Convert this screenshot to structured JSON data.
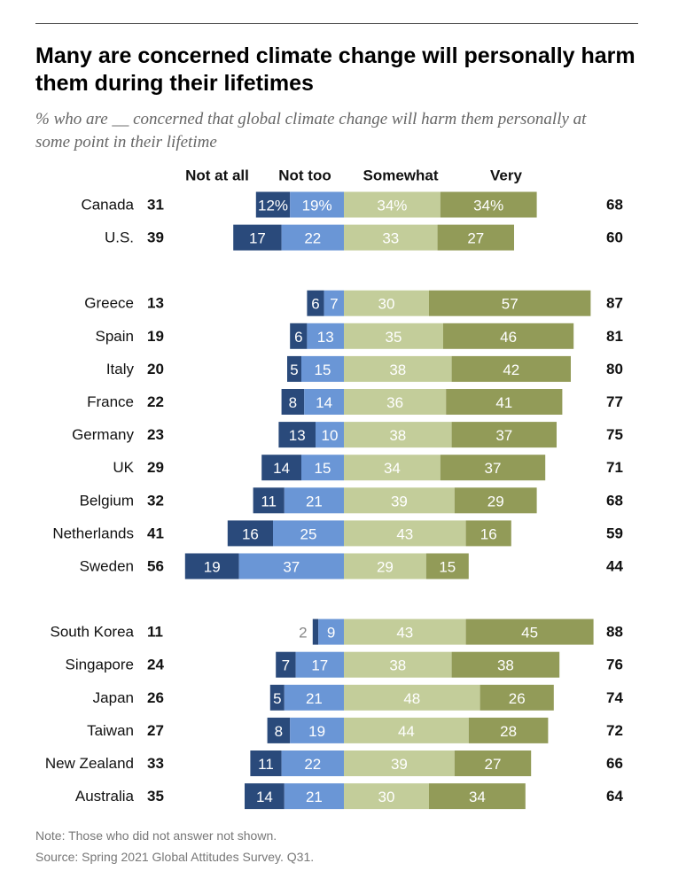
{
  "header": {
    "title": "Many are concerned climate change will personally harm them during their lifetimes",
    "subtitle": "% who are __ concerned that global climate change will harm them personally at some point in their lifetime"
  },
  "footer": {
    "note": "Note: Those who did not answer not shown.",
    "source": "Source: Spring 2021 Global Attitudes Survey. Q31."
  },
  "colors": {
    "not_at_all": "#2a4a7b",
    "not_too": "#6a96d6",
    "somewhat": "#c3cd9a",
    "very": "#929b58"
  },
  "chart_data": {
    "type": "bar",
    "orientation": "horizontal",
    "stacking": "diverging",
    "series": [
      {
        "name": "Not at all",
        "side": "negative"
      },
      {
        "name": "Not too",
        "side": "negative"
      },
      {
        "name": "Somewhat",
        "side": "positive"
      },
      {
        "name": "Very",
        "side": "positive"
      }
    ],
    "groups": [
      [
        {
          "country": "Canada",
          "not_concerned_total": "31",
          "values": [
            12,
            19,
            34,
            34
          ],
          "labels": [
            "12%",
            "19%",
            "34%",
            "34%"
          ],
          "concerned_total": "68"
        },
        {
          "country": "U.S.",
          "not_concerned_total": "39",
          "values": [
            17,
            22,
            33,
            27
          ],
          "labels": [
            "17",
            "22",
            "33",
            "27"
          ],
          "concerned_total": "60"
        }
      ],
      [
        {
          "country": "Greece",
          "not_concerned_total": "13",
          "values": [
            6,
            7,
            30,
            57
          ],
          "labels": [
            "6",
            "7",
            "30",
            "57"
          ],
          "concerned_total": "87"
        },
        {
          "country": "Spain",
          "not_concerned_total": "19",
          "values": [
            6,
            13,
            35,
            46
          ],
          "labels": [
            "6",
            "13",
            "35",
            "46"
          ],
          "concerned_total": "81"
        },
        {
          "country": "Italy",
          "not_concerned_total": "20",
          "values": [
            5,
            15,
            38,
            42
          ],
          "labels": [
            "5",
            "15",
            "38",
            "42"
          ],
          "concerned_total": "80"
        },
        {
          "country": "France",
          "not_concerned_total": "22",
          "values": [
            8,
            14,
            36,
            41
          ],
          "labels": [
            "8",
            "14",
            "36",
            "41"
          ],
          "concerned_total": "77"
        },
        {
          "country": "Germany",
          "not_concerned_total": "23",
          "values": [
            13,
            10,
            38,
            37
          ],
          "labels": [
            "13",
            "10",
            "38",
            "37"
          ],
          "concerned_total": "75"
        },
        {
          "country": "UK",
          "not_concerned_total": "29",
          "values": [
            14,
            15,
            34,
            37
          ],
          "labels": [
            "14",
            "15",
            "34",
            "37"
          ],
          "concerned_total": "71"
        },
        {
          "country": "Belgium",
          "not_concerned_total": "32",
          "values": [
            11,
            21,
            39,
            29
          ],
          "labels": [
            "11",
            "21",
            "39",
            "29"
          ],
          "concerned_total": "68"
        },
        {
          "country": "Netherlands",
          "not_concerned_total": "41",
          "values": [
            16,
            25,
            43,
            16
          ],
          "labels": [
            "16",
            "25",
            "43",
            "16"
          ],
          "concerned_total": "59"
        },
        {
          "country": "Sweden",
          "not_concerned_total": "56",
          "values": [
            19,
            37,
            29,
            15
          ],
          "labels": [
            "19",
            "37",
            "29",
            "15"
          ],
          "concerned_total": "44"
        }
      ],
      [
        {
          "country": "South Korea",
          "not_concerned_total": "11",
          "values": [
            2,
            9,
            43,
            45
          ],
          "labels": [
            "2",
            "9",
            "43",
            "45"
          ],
          "concerned_total": "88"
        },
        {
          "country": "Singapore",
          "not_concerned_total": "24",
          "values": [
            7,
            17,
            38,
            38
          ],
          "labels": [
            "7",
            "17",
            "38",
            "38"
          ],
          "concerned_total": "76"
        },
        {
          "country": "Japan",
          "not_concerned_total": "26",
          "values": [
            5,
            21,
            48,
            26
          ],
          "labels": [
            "5",
            "21",
            "48",
            "26"
          ],
          "concerned_total": "74"
        },
        {
          "country": "Taiwan",
          "not_concerned_total": "27",
          "values": [
            8,
            19,
            44,
            28
          ],
          "labels": [
            "8",
            "19",
            "44",
            "28"
          ],
          "concerned_total": "72"
        },
        {
          "country": "New Zealand",
          "not_concerned_total": "33",
          "values": [
            11,
            22,
            39,
            27
          ],
          "labels": [
            "11",
            "22",
            "39",
            "27"
          ],
          "concerned_total": "66"
        },
        {
          "country": "Australia",
          "not_concerned_total": "35",
          "values": [
            14,
            21,
            30,
            34
          ],
          "labels": [
            "14",
            "21",
            "30",
            "34"
          ],
          "concerned_total": "64"
        }
      ]
    ]
  }
}
